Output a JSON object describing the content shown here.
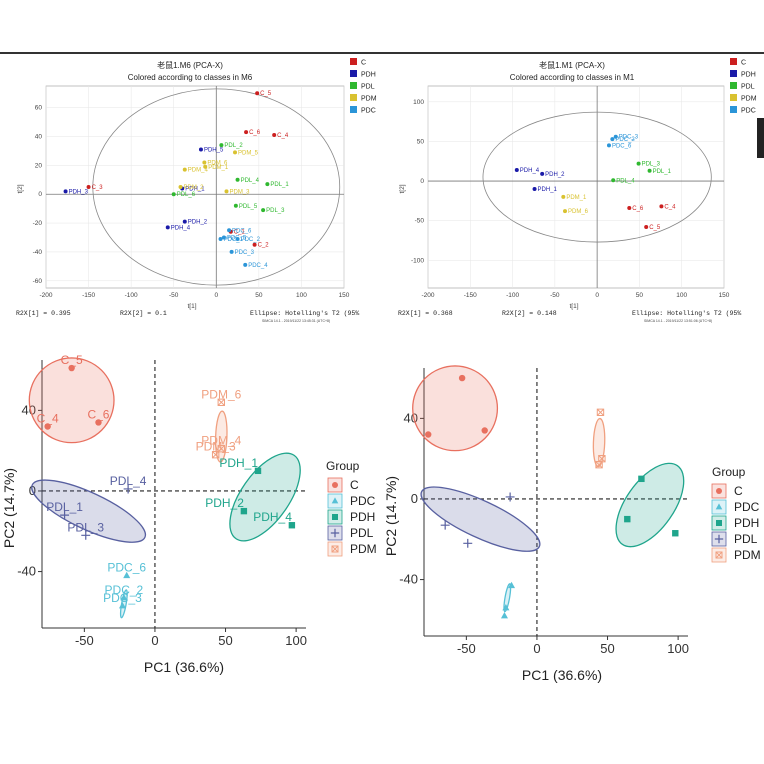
{
  "chart_data": [
    {
      "type": "scatter",
      "title": "老鼠1.M6 (PCA-X)",
      "subtitle": "Colored according to classes in M6",
      "xlabel": "t[1]",
      "ylabel": "t[2]",
      "xlim": [
        -200,
        150
      ],
      "ylim": [
        -65,
        75
      ],
      "xticks": [
        "-200",
        "-150",
        "-100",
        "-50",
        "0",
        "50",
        "100",
        "150"
      ],
      "yticks": [
        "60",
        "40",
        "20",
        "0",
        "-20",
        "-40",
        "-60"
      ],
      "footer": {
        "left": "R2X[1] = 0.395",
        "middle": "R2X[2] = 0.1",
        "right": "Ellipse: Hotelling's T2 (95%",
        "small": "SIMCA 14.1 - 2019/11/22 13:45:31 (UTC+8)"
      },
      "ellipse": {
        "cx": 0,
        "cy": 5,
        "rx": 145,
        "ry": 68
      },
      "legend": [
        {
          "name": "C",
          "color": "#cc1f1f"
        },
        {
          "name": "PDH",
          "color": "#1a1aa8"
        },
        {
          "name": "PDL",
          "color": "#2fb82f"
        },
        {
          "name": "PDM",
          "color": "#d9c230"
        },
        {
          "name": "PDC",
          "color": "#2b95d8"
        }
      ],
      "points": [
        {
          "group": "C",
          "label": "C_5",
          "x": 48,
          "y": 70
        },
        {
          "group": "C",
          "label": "C_6",
          "x": 35,
          "y": 43
        },
        {
          "group": "C",
          "label": "C_4",
          "x": 68,
          "y": 41
        },
        {
          "group": "C",
          "label": "C_3",
          "x": -150,
          "y": 5
        },
        {
          "group": "C",
          "label": "C_1",
          "x": 17,
          "y": -26
        },
        {
          "group": "C",
          "label": "C_2",
          "x": 45,
          "y": -35
        },
        {
          "group": "PDH",
          "label": "PDH_3",
          "x": -177,
          "y": 2
        },
        {
          "group": "PDH",
          "label": "PDH_5",
          "x": -18,
          "y": 31
        },
        {
          "group": "PDH",
          "label": "PDH_1",
          "x": -40,
          "y": 4
        },
        {
          "group": "PDH",
          "label": "PDH_2",
          "x": -37,
          "y": -19
        },
        {
          "group": "PDH",
          "label": "PDH_4",
          "x": -57,
          "y": -23
        },
        {
          "group": "PDL",
          "label": "PDL_2",
          "x": 6,
          "y": 34
        },
        {
          "group": "PDL",
          "label": "PDL_4",
          "x": 25,
          "y": 10
        },
        {
          "group": "PDL",
          "label": "PDL_1",
          "x": 60,
          "y": 7
        },
        {
          "group": "PDL",
          "label": "PDL_6",
          "x": -50,
          "y": 0
        },
        {
          "group": "PDL",
          "label": "PDL_5",
          "x": 23,
          "y": -8
        },
        {
          "group": "PDL",
          "label": "PDL_3",
          "x": 55,
          "y": -11
        },
        {
          "group": "PDM",
          "label": "PDM_5",
          "x": 22,
          "y": 29
        },
        {
          "group": "PDM",
          "label": "PDM_6",
          "x": -14,
          "y": 22
        },
        {
          "group": "PDM",
          "label": "PDM_4",
          "x": -37,
          "y": 17
        },
        {
          "group": "PDM",
          "label": "PDM_3",
          "x": 12,
          "y": 2
        },
        {
          "group": "PDM",
          "label": "PDM_1",
          "x": -13,
          "y": 19
        },
        {
          "group": "PDM",
          "label": "PDM_2",
          "x": -42,
          "y": 5
        },
        {
          "group": "PDC",
          "label": "PDC_6",
          "x": 15,
          "y": -25
        },
        {
          "group": "PDC",
          "label": "PDC_1",
          "x": 5,
          "y": -31
        },
        {
          "group": "PDC",
          "label": "PDC_5",
          "x": 9,
          "y": -30
        },
        {
          "group": "PDC",
          "label": "PDC_2",
          "x": 25,
          "y": -31
        },
        {
          "group": "PDC",
          "label": "PDC_3",
          "x": 18,
          "y": -40
        },
        {
          "group": "PDC",
          "label": "PDC_4",
          "x": 34,
          "y": -49
        }
      ]
    },
    {
      "type": "scatter",
      "title": "老鼠1.M1 (PCA-X)",
      "subtitle": "Colored according to classes in M1",
      "xlabel": "t[1]",
      "ylabel": "t[2]",
      "xlim": [
        -200,
        150
      ],
      "ylim": [
        -135,
        120
      ],
      "xticks": [
        "-200",
        "-150",
        "-100",
        "-50",
        "0",
        "50",
        "100",
        "150"
      ],
      "yticks": [
        "100",
        "50",
        "0",
        "-50",
        "-100"
      ],
      "footer": {
        "left": "R2X[1] = 0.368",
        "middle": "R2X[2] = 0.148",
        "right": "Ellipse: Hotelling's T2 (95%",
        "small": "SIMCA 14.1 - 2019/11/22 13:51:06 (UTC+8)"
      },
      "ellipse": {
        "cx": 0,
        "cy": 5,
        "rx": 135,
        "ry": 82
      },
      "legend": [
        {
          "name": "C",
          "color": "#cc1f1f"
        },
        {
          "name": "PDH",
          "color": "#1a1aa8"
        },
        {
          "name": "PDL",
          "color": "#2fb82f"
        },
        {
          "name": "PDM",
          "color": "#d9c230"
        },
        {
          "name": "PDC",
          "color": "#2b95d8"
        }
      ],
      "points": [
        {
          "group": "C",
          "label": "C_6",
          "x": 38,
          "y": -34
        },
        {
          "group": "C",
          "label": "C_4",
          "x": 76,
          "y": -32
        },
        {
          "group": "C",
          "label": "C_5",
          "x": 58,
          "y": -58
        },
        {
          "group": "PDH",
          "label": "PDH_4",
          "x": -95,
          "y": 14
        },
        {
          "group": "PDH",
          "label": "PDH_2",
          "x": -65,
          "y": 9
        },
        {
          "group": "PDH",
          "label": "PDH_1",
          "x": -74,
          "y": -10
        },
        {
          "group": "PDL",
          "label": "PDL_3",
          "x": 49,
          "y": 22
        },
        {
          "group": "PDL",
          "label": "PDL_1",
          "x": 62,
          "y": 13
        },
        {
          "group": "PDL",
          "label": "PDL_4",
          "x": 19,
          "y": 1
        },
        {
          "group": "PDM",
          "label": "PDM_1",
          "x": -40,
          "y": -20
        },
        {
          "group": "PDM",
          "label": "PDM_6",
          "x": -38,
          "y": -38
        },
        {
          "group": "PDC",
          "label": "PDC_2",
          "x": 18,
          "y": 53
        },
        {
          "group": "PDC",
          "label": "PDC_3",
          "x": 22,
          "y": 56
        },
        {
          "group": "PDC",
          "label": "PDC_6",
          "x": 14,
          "y": 45
        }
      ]
    },
    {
      "type": "scatter",
      "xlabel": "PC1 (36.6%)",
      "ylabel": "PC2 (14.7%)",
      "xlim": [
        -80,
        107
      ],
      "ylim": [
        -68,
        65
      ],
      "xticks": [
        "-50",
        "0",
        "50",
        "100"
      ],
      "yticks": [
        "40",
        "0",
        "-40"
      ],
      "legend_title": "Group",
      "legend": [
        {
          "name": "C",
          "color": "#e8705f",
          "marker": "circle"
        },
        {
          "name": "PDC",
          "color": "#56c0d6",
          "marker": "triangle"
        },
        {
          "name": "PDH",
          "color": "#1fa58c",
          "marker": "square"
        },
        {
          "name": "PDL",
          "color": "#5860a0",
          "marker": "plus"
        },
        {
          "name": "PDM",
          "color": "#f0a080",
          "marker": "boxx"
        }
      ],
      "ellipses": [
        {
          "group": "C",
          "cx": -59,
          "cy": 45,
          "rx": 30,
          "ry": 30,
          "rot": 0
        },
        {
          "group": "PDH",
          "cx": 78,
          "cy": -3,
          "rx": 36,
          "ry": 17,
          "rot": -55
        },
        {
          "group": "PDL",
          "cx": -47,
          "cy": -10,
          "rx": 44,
          "ry": 13,
          "rot": 25
        },
        {
          "group": "PDM",
          "cx": 47,
          "cy": 27,
          "rx": 18,
          "ry": 4,
          "rot": -88
        },
        {
          "group": "PDC",
          "cx": -22,
          "cy": -56,
          "rx": 10,
          "ry": 1.6,
          "rot": -80
        }
      ],
      "points": [
        {
          "group": "C",
          "label": "C_5",
          "x": -59,
          "y": 61
        },
        {
          "group": "C",
          "label": "C_4",
          "x": -76,
          "y": 32
        },
        {
          "group": "C",
          "label": "C_6",
          "x": -40,
          "y": 34
        },
        {
          "group": "PDH",
          "label": "PDH_1",
          "x": 73,
          "y": 10
        },
        {
          "group": "PDH",
          "label": "PDH_2",
          "x": 63,
          "y": -10
        },
        {
          "group": "PDH",
          "label": "PDH_4",
          "x": 97,
          "y": -17
        },
        {
          "group": "PDL",
          "label": "PDL_4",
          "x": -19,
          "y": 1
        },
        {
          "group": "PDL",
          "label": "PDL_1",
          "x": -64,
          "y": -12
        },
        {
          "group": "PDL",
          "label": "PDL_3",
          "x": -49,
          "y": -22
        },
        {
          "group": "PDM",
          "label": "PDM_6",
          "x": 47,
          "y": 44
        },
        {
          "group": "PDM",
          "label": "PDM_4",
          "x": 47,
          "y": 21
        },
        {
          "group": "PDM",
          "label": "PDM_3",
          "x": 43,
          "y": 18
        },
        {
          "group": "PDC",
          "label": "PDC_6",
          "x": -20,
          "y": -42
        },
        {
          "group": "PDC",
          "label": "PDC_2",
          "x": -22,
          "y": -53
        },
        {
          "group": "PDC",
          "label": "PDC_3",
          "x": -23,
          "y": -57
        }
      ]
    },
    {
      "type": "scatter",
      "xlabel": "PC1 (36.6%)",
      "ylabel": "PC2 (14.7%)",
      "xlim": [
        -80,
        107
      ],
      "ylim": [
        -68,
        65
      ],
      "xticks": [
        "-50",
        "0",
        "50",
        "100"
      ],
      "yticks": [
        "40",
        "0",
        "-40"
      ],
      "legend_title": "Group",
      "legend": [
        {
          "name": "C",
          "color": "#e8705f",
          "marker": "circle"
        },
        {
          "name": "PDC",
          "color": "#56c0d6",
          "marker": "triangle"
        },
        {
          "name": "PDH",
          "color": "#1fa58c",
          "marker": "square"
        },
        {
          "name": "PDL",
          "color": "#5860a0",
          "marker": "plus"
        },
        {
          "name": "PDM",
          "color": "#f0a080",
          "marker": "boxx"
        }
      ],
      "ellipses": [
        {
          "group": "C",
          "cx": -58,
          "cy": 45,
          "rx": 30,
          "ry": 30,
          "rot": 0
        },
        {
          "group": "PDH",
          "cx": 80,
          "cy": -3,
          "rx": 34,
          "ry": 17,
          "rot": -55
        },
        {
          "group": "PDL",
          "cx": -40,
          "cy": -10,
          "rx": 46,
          "ry": 13,
          "rot": 25
        },
        {
          "group": "PDM",
          "cx": 44,
          "cy": 28,
          "rx": 17,
          "ry": 4,
          "rot": -88
        },
        {
          "group": "PDC",
          "cx": -21,
          "cy": -49,
          "rx": 10,
          "ry": 1.6,
          "rot": -80
        }
      ],
      "points": [
        {
          "group": "C",
          "x": -53,
          "y": 60
        },
        {
          "group": "C",
          "x": -77,
          "y": 32
        },
        {
          "group": "C",
          "x": -37,
          "y": 34
        },
        {
          "group": "PDH",
          "x": 74,
          "y": 10
        },
        {
          "group": "PDH",
          "x": 64,
          "y": -10
        },
        {
          "group": "PDH",
          "x": 98,
          "y": -17
        },
        {
          "group": "PDL",
          "x": -19,
          "y": 1
        },
        {
          "group": "PDL",
          "x": -65,
          "y": -13
        },
        {
          "group": "PDL",
          "x": -49,
          "y": -22
        },
        {
          "group": "PDM",
          "x": 45,
          "y": 43
        },
        {
          "group": "PDM",
          "x": 46,
          "y": 20
        },
        {
          "group": "PDM",
          "x": 44,
          "y": 17
        },
        {
          "group": "PDC",
          "x": -18,
          "y": -43
        },
        {
          "group": "PDC",
          "x": -22,
          "y": -54
        },
        {
          "group": "PDC",
          "x": -23,
          "y": -58
        }
      ]
    }
  ]
}
